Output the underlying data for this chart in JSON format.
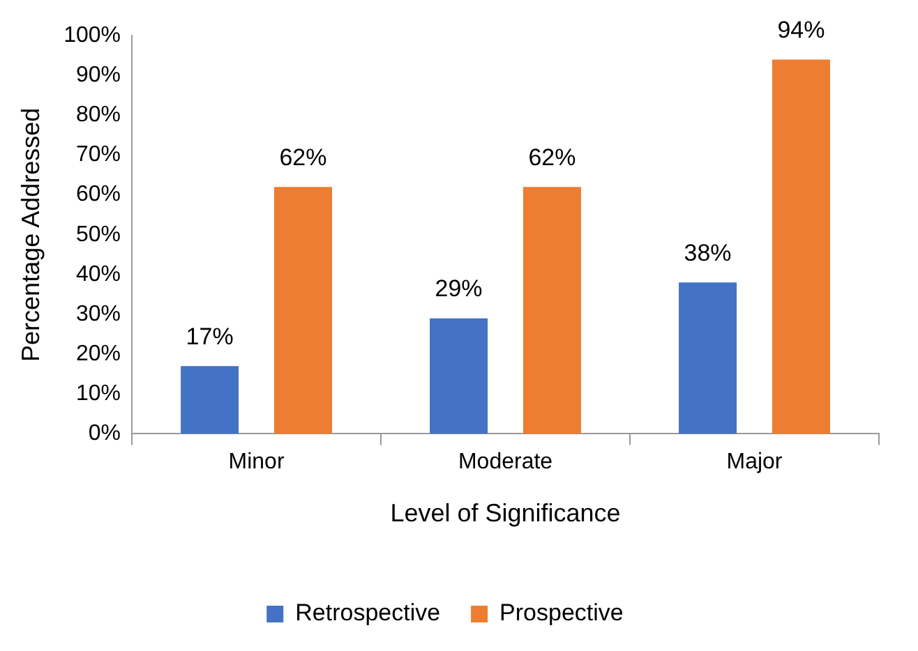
{
  "chart_data": {
    "type": "bar",
    "xlabel": "Level of Significance",
    "ylabel": "Percentage Addressed",
    "categories": [
      "Minor",
      "Moderate",
      "Major"
    ],
    "series": [
      {
        "name": "Retrospective",
        "color": "#4472c4",
        "values": [
          17,
          29,
          38
        ],
        "value_labels": [
          "17%",
          "29%",
          "38%"
        ]
      },
      {
        "name": "Prospective",
        "color": "#ed7d31",
        "values": [
          62,
          62,
          94
        ],
        "value_labels": [
          "62%",
          "62%",
          "94%"
        ]
      }
    ],
    "ylim": [
      0,
      100
    ],
    "yticks": [
      {
        "value": 0,
        "label": "0%"
      },
      {
        "value": 10,
        "label": "10%"
      },
      {
        "value": 20,
        "label": "20%"
      },
      {
        "value": 30,
        "label": "30%"
      },
      {
        "value": 40,
        "label": "40%"
      },
      {
        "value": 50,
        "label": "50%"
      },
      {
        "value": 60,
        "label": "60%"
      },
      {
        "value": 70,
        "label": "70%"
      },
      {
        "value": 80,
        "label": "80%"
      },
      {
        "value": 90,
        "label": "90%"
      },
      {
        "value": 100,
        "label": "100%"
      }
    ],
    "grid": false,
    "legend": "bottom"
  }
}
